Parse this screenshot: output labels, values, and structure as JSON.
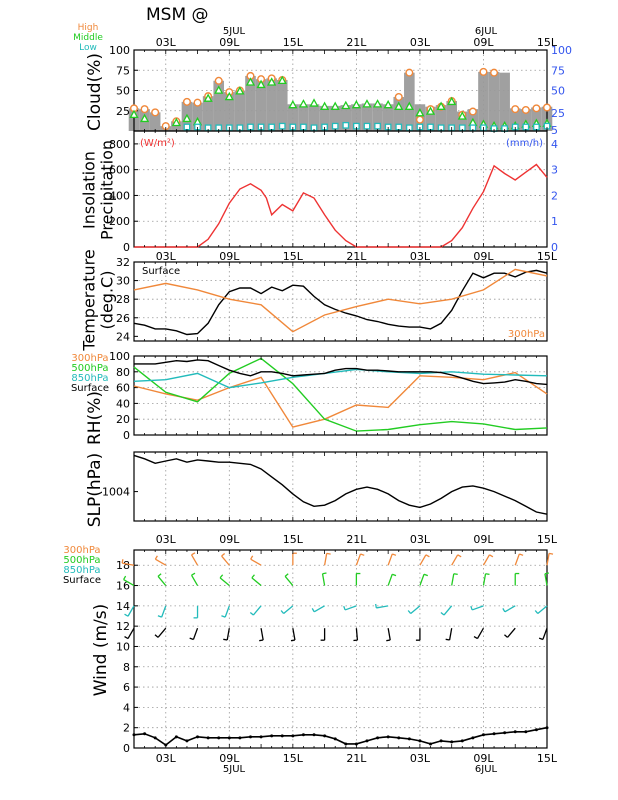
{
  "title": "MSM  @",
  "legend_cloud": [
    {
      "name": "High",
      "color": "#f0883a"
    },
    {
      "name": "Middle",
      "color": "#22cc22"
    },
    {
      "name": "Low",
      "color": "#22bbbb"
    }
  ],
  "top_axis": {
    "date_labels": [
      {
        "text": "5JUL",
        "hour": 9
      },
      {
        "text": "6JUL",
        "hour": 33
      }
    ],
    "hour_labels": [
      {
        "text": "03L",
        "hour": 3
      },
      {
        "text": "09L",
        "hour": 9
      },
      {
        "text": "15L",
        "hour": 15
      },
      {
        "text": "21L",
        "hour": 21
      },
      {
        "text": "03L",
        "hour": 27
      },
      {
        "text": "09L",
        "hour": 33
      },
      {
        "text": "15L",
        "hour": 39
      }
    ]
  },
  "bottom_axis": {
    "hour_labels": [
      {
        "text": "03L",
        "hour": 3
      },
      {
        "text": "09L",
        "hour": 9
      },
      {
        "text": "15L",
        "hour": 15
      },
      {
        "text": "21L",
        "hour": 21
      },
      {
        "text": "03L",
        "hour": 27
      },
      {
        "text": "09L",
        "hour": 33
      },
      {
        "text": "15L",
        "hour": 39
      }
    ],
    "date_labels": [
      {
        "text": "5JUL",
        "hour": 9
      },
      {
        "text": "6JUL",
        "hour": 33
      }
    ]
  },
  "colors": {
    "orange": "#f0883a",
    "green": "#22cc22",
    "cyan": "#22bbbb",
    "red": "#ee3333",
    "blue": "#3355ee",
    "black": "#000000",
    "gray": "#a0a0a0"
  },
  "chart_data": [
    {
      "id": "cloud",
      "type": "bar",
      "ylabel": "Cloud(%)",
      "ylim": [
        0,
        100
      ],
      "yticks_left": [
        25,
        50,
        75,
        100
      ],
      "yticks_right": [
        5,
        25,
        50,
        75,
        100
      ],
      "x": [
        0,
        1,
        2,
        3,
        4,
        5,
        6,
        7,
        8,
        9,
        10,
        11,
        12,
        13,
        14,
        15,
        16,
        17,
        18,
        19,
        20,
        21,
        22,
        23,
        24,
        25,
        26,
        27,
        28,
        29,
        30,
        31,
        32,
        33,
        34,
        35,
        36,
        37,
        38,
        39
      ],
      "total": [
        28,
        27,
        23,
        6,
        12,
        36,
        35,
        43,
        62,
        48,
        50,
        68,
        64,
        65,
        63,
        33,
        33,
        33,
        31,
        31,
        32,
        33,
        34,
        34,
        33,
        42,
        72,
        33,
        30,
        32,
        37,
        24,
        27,
        73,
        73,
        72,
        28,
        27,
        29,
        30
      ],
      "series": [
        {
          "name": "High",
          "values": [
            28,
            27,
            23,
            6,
            12,
            36,
            35,
            43,
            62,
            48,
            50,
            68,
            64,
            65,
            63,
            null,
            null,
            null,
            null,
            null,
            null,
            null,
            null,
            null,
            null,
            42,
            72,
            14,
            27,
            30,
            37,
            20,
            24,
            73,
            72,
            null,
            27,
            26,
            28,
            29
          ]
        },
        {
          "name": "Middle",
          "values": [
            20,
            15,
            null,
            null,
            10,
            15,
            11,
            40,
            50,
            42,
            49,
            60,
            57,
            60,
            62,
            32,
            33,
            34,
            30,
            30,
            31,
            32,
            33,
            33,
            32,
            30,
            30,
            22,
            24,
            30,
            36,
            18,
            10,
            8,
            6,
            6,
            6,
            8,
            9,
            9
          ]
        },
        {
          "name": "Low",
          "values": [
            null,
            null,
            null,
            null,
            null,
            5,
            5,
            4,
            4,
            4,
            4,
            5,
            5,
            5,
            6,
            5,
            5,
            4,
            5,
            6,
            7,
            6,
            6,
            6,
            5,
            5,
            4,
            5,
            5,
            4,
            4,
            4,
            4,
            4,
            3,
            3,
            5,
            5,
            5,
            6
          ]
        }
      ]
    },
    {
      "id": "insolation",
      "type": "line",
      "ylabel": "Insolation\nPrecipitation",
      "unit_left": "(W/m²)",
      "unit_right": "(mm/h)",
      "ylim": [
        0,
        900
      ],
      "yticks_left": [
        0,
        200,
        400,
        600,
        800
      ],
      "yticks_right": [
        0,
        1,
        2,
        3,
        4
      ],
      "series": [
        {
          "name": "Insolation",
          "x": [
            0,
            1,
            2,
            3,
            4,
            5,
            6,
            7,
            8,
            9,
            10,
            11,
            12,
            12.5,
            13,
            14,
            15,
            16,
            17,
            18,
            19,
            20,
            21,
            22,
            23,
            24,
            25,
            26,
            27,
            28,
            29,
            30,
            31,
            32,
            33,
            34,
            35,
            36,
            37,
            38,
            39
          ],
          "values": [
            0,
            0,
            0,
            0,
            0,
            0,
            0,
            60,
            180,
            340,
            450,
            490,
            440,
            380,
            250,
            330,
            280,
            420,
            380,
            250,
            130,
            50,
            0,
            0,
            0,
            0,
            0,
            0,
            0,
            0,
            0,
            50,
            150,
            300,
            430,
            630,
            570,
            520,
            580,
            640,
            540
          ]
        }
      ]
    },
    {
      "id": "temperature",
      "type": "line",
      "ylabel": "Temperature\n(deg.C)",
      "ylim": [
        23.5,
        32
      ],
      "yticks": [
        24,
        26,
        28,
        30,
        32
      ],
      "series": [
        {
          "name": "Surface",
          "x": [
            0,
            1,
            2,
            3,
            4,
            5,
            6,
            7,
            8,
            9,
            10,
            11,
            12,
            13,
            14,
            15,
            16,
            17,
            18,
            19,
            20,
            21,
            22,
            23,
            24,
            25,
            26,
            27,
            28,
            29,
            30,
            31,
            32,
            33,
            34,
            35,
            36,
            37,
            38,
            39
          ],
          "values": [
            25.4,
            25.2,
            24.8,
            24.8,
            24.6,
            24.2,
            24.3,
            25.4,
            27.4,
            28.8,
            29.2,
            29.2,
            28.6,
            29.3,
            28.9,
            29.5,
            29.4,
            28.3,
            27.4,
            26.9,
            26.5,
            26.2,
            25.8,
            25.6,
            25.3,
            25.1,
            25.0,
            25.0,
            24.8,
            25.4,
            26.8,
            28.9,
            30.8,
            30.3,
            30.8,
            30.8,
            30.4,
            30.9,
            31.1,
            30.8
          ]
        },
        {
          "name": "300hPa",
          "x": [
            0,
            3,
            6,
            9,
            12,
            15,
            18,
            21,
            24,
            27,
            30,
            33,
            36,
            39
          ],
          "values": [
            29.0,
            29.7,
            29.0,
            28.0,
            27.4,
            24.5,
            26.3,
            27.2,
            28.0,
            27.5,
            28.0,
            29.0,
            31.2,
            30.5
          ]
        }
      ]
    },
    {
      "id": "rh",
      "type": "line",
      "ylabel": "RH(%)",
      "ylim": [
        0,
        100
      ],
      "yticks": [
        0,
        20,
        40,
        60,
        80,
        100
      ],
      "series": [
        {
          "name": "300hPa",
          "x": [
            0,
            3,
            6,
            9,
            12,
            15,
            18,
            21,
            24,
            27,
            30,
            33,
            36,
            39
          ],
          "values": [
            62,
            52,
            44,
            60,
            73,
            10,
            20,
            38,
            35,
            75,
            73,
            70,
            79,
            52
          ]
        },
        {
          "name": "500hPa",
          "x": [
            0,
            3,
            6,
            9,
            12,
            15,
            18,
            21,
            24,
            27,
            30,
            33,
            36,
            39
          ],
          "values": [
            86,
            54,
            42,
            78,
            97,
            65,
            20,
            5,
            7,
            13,
            17,
            14,
            7,
            9
          ]
        },
        {
          "name": "850hPa",
          "x": [
            0,
            3,
            6,
            9,
            12,
            15,
            18,
            21,
            24,
            27,
            30,
            33,
            36,
            39
          ],
          "values": [
            68,
            70,
            78,
            60,
            66,
            73,
            78,
            83,
            80,
            78,
            80,
            77,
            76,
            75
          ]
        },
        {
          "name": "Surface",
          "x": [
            0,
            1,
            2,
            3,
            4,
            5,
            6,
            7,
            8,
            9,
            10,
            11,
            12,
            13,
            14,
            15,
            16,
            17,
            18,
            19,
            20,
            21,
            22,
            23,
            24,
            25,
            26,
            27,
            28,
            29,
            30,
            31,
            32,
            33,
            34,
            35,
            36,
            37,
            38,
            39
          ],
          "values": [
            90,
            90,
            90,
            92,
            94,
            93,
            95,
            94,
            88,
            82,
            78,
            75,
            80,
            80,
            78,
            75,
            76,
            77,
            78,
            82,
            84,
            84,
            82,
            82,
            81,
            80,
            80,
            80,
            80,
            79,
            76,
            72,
            68,
            65,
            66,
            67,
            70,
            68,
            65,
            64
          ]
        }
      ]
    },
    {
      "id": "slp",
      "type": "line",
      "ylabel": "SLP(hPa)",
      "ylim": [
        1001.4,
        1007.5
      ],
      "yticks": [
        1004
      ],
      "series": [
        {
          "name": "SLP",
          "x": [
            0,
            1,
            2,
            3,
            4,
            5,
            6,
            7,
            8,
            9,
            10,
            11,
            12,
            13,
            14,
            15,
            16,
            17,
            18,
            19,
            20,
            21,
            22,
            23,
            24,
            25,
            26,
            27,
            28,
            29,
            30,
            31,
            32,
            33,
            34,
            35,
            36,
            37,
            38,
            39
          ],
          "values": [
            1007.2,
            1006.9,
            1006.5,
            1006.7,
            1006.9,
            1006.6,
            1006.8,
            1006.7,
            1006.6,
            1006.6,
            1006.5,
            1006.4,
            1006.0,
            1005.3,
            1004.6,
            1003.8,
            1003.1,
            1002.7,
            1002.8,
            1003.2,
            1003.8,
            1004.2,
            1004.4,
            1004.2,
            1003.8,
            1003.2,
            1002.8,
            1002.6,
            1002.9,
            1003.4,
            1004.0,
            1004.4,
            1004.5,
            1004.3,
            1004.0,
            1003.6,
            1003.2,
            1002.7,
            1002.2,
            1002.0
          ]
        }
      ]
    },
    {
      "id": "wind",
      "type": "line",
      "ylabel": "Wind  (m/s)",
      "ylim": [
        0,
        19.5
      ],
      "yticks": [
        0,
        2,
        4,
        6,
        8,
        10,
        12,
        14,
        16,
        18
      ],
      "barb_levels": [
        {
          "name": "300hPa",
          "height": 18,
          "hours": [
            0,
            3,
            6,
            9,
            12,
            15,
            18,
            21,
            24,
            27,
            30,
            33,
            36,
            39
          ],
          "dir": [
            280,
            300,
            330,
            320,
            300,
            0,
            10,
            20,
            20,
            30,
            30,
            30,
            20,
            10
          ]
        },
        {
          "name": "500hPa",
          "height": 16,
          "hours": [
            0,
            3,
            6,
            9,
            12,
            15,
            18,
            21,
            24,
            27,
            30,
            33,
            36,
            39
          ],
          "dir": [
            300,
            320,
            330,
            310,
            310,
            320,
            350,
            0,
            20,
            20,
            10,
            10,
            0,
            350
          ]
        },
        {
          "name": "850hPa",
          "height": 14,
          "hours": [
            0,
            3,
            6,
            9,
            12,
            15,
            18,
            21,
            24,
            27,
            30,
            33,
            36,
            39
          ],
          "dir": [
            210,
            200,
            180,
            200,
            220,
            230,
            240,
            250,
            260,
            230,
            220,
            250,
            240,
            230
          ]
        },
        {
          "name": "Surface",
          "height": 11.8,
          "hours": [
            0,
            3,
            6,
            9,
            12,
            15,
            18,
            21,
            24,
            27,
            30,
            33,
            36,
            39
          ],
          "dir": [
            210,
            220,
            200,
            190,
            170,
            170,
            180,
            175,
            170,
            180,
            190,
            210,
            220,
            200
          ]
        }
      ],
      "series": [
        {
          "name": "Wind speed",
          "x": [
            0,
            1,
            2,
            3,
            4,
            5,
            6,
            7,
            8,
            9,
            10,
            11,
            12,
            13,
            14,
            15,
            16,
            17,
            18,
            19,
            20,
            21,
            22,
            23,
            24,
            25,
            26,
            27,
            28,
            29,
            30,
            31,
            32,
            33,
            34,
            35,
            36,
            37,
            38,
            39
          ],
          "values": [
            1.3,
            1.4,
            1.0,
            0.3,
            1.1,
            0.7,
            1.1,
            1.0,
            1.0,
            1.0,
            1.0,
            1.1,
            1.1,
            1.2,
            1.2,
            1.2,
            1.3,
            1.3,
            1.2,
            0.9,
            0.4,
            0.4,
            0.7,
            1.0,
            1.1,
            1.0,
            0.9,
            0.7,
            0.4,
            0.7,
            0.6,
            0.7,
            1.0,
            1.3,
            1.4,
            1.5,
            1.6,
            1.6,
            1.8,
            2.0
          ]
        }
      ]
    }
  ]
}
